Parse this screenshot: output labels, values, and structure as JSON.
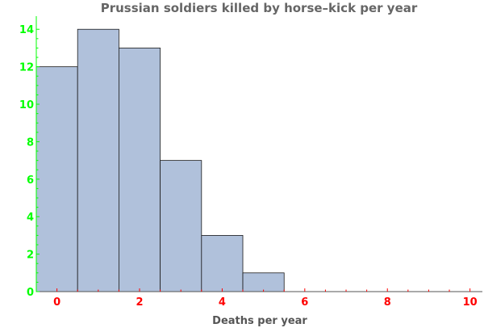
{
  "chart_data": {
    "type": "bar",
    "title": "Prussian soldiers killed by horse–kick per year",
    "xlabel": "Deaths per year",
    "ylabel": "",
    "bins": [
      0,
      1,
      2,
      3,
      4,
      5
    ],
    "values": [
      12,
      14,
      13,
      7,
      3,
      1
    ],
    "xlim": [
      -0.5,
      10.3
    ],
    "ylim": [
      0,
      14.7
    ],
    "xticks": [
      "0",
      "2",
      "4",
      "6",
      "8",
      "10"
    ],
    "yticks": [
      "0",
      "2",
      "4",
      "6",
      "8",
      "10",
      "12",
      "14"
    ],
    "grid": false,
    "legend": "none"
  },
  "colors": {
    "bar_fill": "#b0c1db",
    "bar_stroke": "#1a1a1a",
    "x_axis": "#ff0000",
    "y_axis": "#00ff00",
    "title": "#666666",
    "xlabel": "#555555"
  }
}
